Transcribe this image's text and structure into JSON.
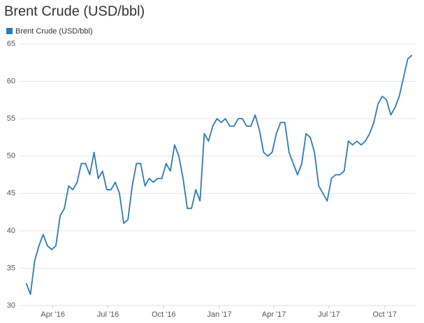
{
  "chart_data": {
    "type": "line",
    "title": "Brent Crude (USD/bbl)",
    "x": [
      47,
      54,
      61,
      68,
      75,
      82,
      89,
      96,
      103,
      110,
      117,
      124,
      131,
      138,
      145,
      152,
      159,
      166,
      173,
      180,
      187,
      194,
      201,
      208,
      215,
      222,
      229,
      236,
      243,
      250,
      257,
      264,
      271,
      278,
      285,
      292,
      299,
      306,
      313,
      320,
      327,
      334,
      341,
      348,
      355,
      362,
      369,
      376,
      383,
      390,
      397,
      404,
      411,
      418,
      425,
      432,
      439,
      446,
      453,
      460,
      467,
      474,
      481,
      488,
      495,
      502,
      509,
      516,
      523,
      530,
      537,
      544,
      551,
      558,
      565,
      572,
      579,
      586,
      593,
      600,
      607,
      614,
      621,
      628,
      635,
      642,
      649,
      656,
      663,
      670,
      677,
      684
    ],
    "series": [
      {
        "name": "Brent Crude (USD/bbl)",
        "color": "#2b7bb9",
        "values": [
          33,
          31.5,
          36,
          38,
          39.5,
          38,
          37.5,
          38,
          42,
          43,
          46,
          45.5,
          46.5,
          49,
          49,
          47.5,
          50.5,
          47,
          48,
          45.5,
          45.5,
          46.5,
          45,
          41,
          41.5,
          46,
          49,
          49,
          46,
          47,
          46.5,
          47,
          47,
          49,
          48,
          51.5,
          50,
          47,
          43,
          43,
          45.5,
          44,
          53,
          52,
          54,
          55,
          54.5,
          55,
          54,
          54,
          55,
          55,
          54,
          54,
          55.5,
          53.5,
          50.5,
          50,
          50.5,
          53,
          54.5,
          54.5,
          50.5,
          49,
          47.5,
          49,
          53,
          52.5,
          50.5,
          46,
          45,
          44,
          47,
          47.5,
          47.5,
          48,
          52,
          51.5,
          52,
          51.5,
          52,
          53,
          54.5,
          57,
          58,
          57.5,
          55.5,
          56.5,
          58,
          60.5,
          63,
          63.5
        ]
      }
    ],
    "xlim": [
      36,
      690
    ],
    "xticks": [
      {
        "value": 91,
        "label": "Apr '16"
      },
      {
        "value": 182,
        "label": "Jul '16"
      },
      {
        "value": 274,
        "label": "Oct '16"
      },
      {
        "value": 366,
        "label": "Jan '17"
      },
      {
        "value": 456,
        "label": "Apr '17"
      },
      {
        "value": 547,
        "label": "Jul '17"
      },
      {
        "value": 639,
        "label": "Oct '17"
      }
    ],
    "ylim": [
      30,
      65
    ],
    "yticks": [
      30,
      35,
      40,
      45,
      50,
      55,
      60,
      65
    ],
    "grid": true,
    "legend": "top-left"
  }
}
